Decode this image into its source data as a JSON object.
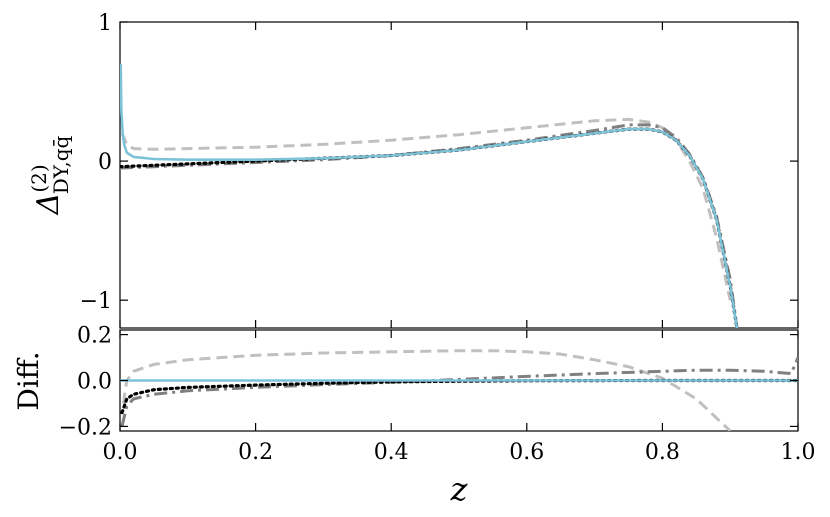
{
  "chart_data": [
    {
      "type": "line",
      "panel": "main",
      "ylabel": "Δ(2) DY,qq̄",
      "xlim": [
        0.0,
        1.0
      ],
      "ylim": [
        -1.2,
        1.0
      ],
      "yticks": [
        {
          "value": 1,
          "label": "1"
        },
        {
          "value": 0,
          "label": "0"
        },
        {
          "value": -1,
          "label": "−1"
        }
      ],
      "grid": false,
      "series": [
        {
          "style": "dashed",
          "color": "#c0c0c0",
          "x": [
            0.003,
            0.01,
            0.02,
            0.05,
            0.1,
            0.2,
            0.3,
            0.4,
            0.5,
            0.6,
            0.7,
            0.75,
            0.78,
            0.8,
            0.82,
            0.84,
            0.86,
            0.88,
            0.9
          ],
          "y": [
            0.2,
            0.12,
            0.09,
            0.085,
            0.09,
            0.1,
            0.12,
            0.15,
            0.19,
            0.24,
            0.29,
            0.3,
            0.28,
            0.24,
            0.15,
            0.0,
            -0.2,
            -0.55,
            -1.0
          ]
        },
        {
          "style": "dashdot",
          "color": "#808080",
          "x": [
            0.0,
            0.05,
            0.1,
            0.2,
            0.3,
            0.4,
            0.5,
            0.6,
            0.7,
            0.75,
            0.78,
            0.8,
            0.82,
            0.84,
            0.86,
            0.88,
            0.9,
            0.91
          ],
          "y": [
            -0.05,
            -0.04,
            -0.03,
            -0.01,
            0.01,
            0.04,
            0.09,
            0.15,
            0.22,
            0.26,
            0.26,
            0.24,
            0.17,
            0.05,
            -0.12,
            -0.4,
            -0.85,
            -1.2
          ]
        },
        {
          "style": "dotted",
          "color": "#000000",
          "x": [
            0.0,
            0.05,
            0.1,
            0.2,
            0.3,
            0.4,
            0.5,
            0.6,
            0.7,
            0.75,
            0.78,
            0.8,
            0.82,
            0.84,
            0.86,
            0.88,
            0.9,
            0.91
          ],
          "y": [
            -0.04,
            -0.03,
            -0.02,
            0.0,
            0.02,
            0.04,
            0.08,
            0.14,
            0.2,
            0.23,
            0.23,
            0.21,
            0.15,
            0.04,
            -0.13,
            -0.42,
            -0.9,
            -1.2
          ]
        },
        {
          "style": "solid",
          "color": "#7cc3d8",
          "x": [
            0.001,
            0.002,
            0.004,
            0.006,
            0.01,
            0.02,
            0.05,
            0.1,
            0.2,
            0.3,
            0.4,
            0.5,
            0.6,
            0.7,
            0.75,
            0.78,
            0.8,
            0.82,
            0.84,
            0.86,
            0.88,
            0.9,
            0.91
          ],
          "y": [
            0.7,
            0.35,
            0.2,
            0.12,
            0.06,
            0.03,
            0.015,
            0.01,
            0.01,
            0.02,
            0.04,
            0.08,
            0.14,
            0.2,
            0.23,
            0.23,
            0.21,
            0.15,
            0.04,
            -0.13,
            -0.42,
            -0.9,
            -1.2
          ]
        }
      ]
    },
    {
      "type": "line",
      "panel": "diff",
      "xlabel": "z",
      "ylabel": "Diff.",
      "xlim": [
        0.0,
        1.0
      ],
      "ylim": [
        -0.22,
        0.22
      ],
      "xticks": [
        {
          "value": 0.0,
          "label": "0.0"
        },
        {
          "value": 0.2,
          "label": "0.2"
        },
        {
          "value": 0.4,
          "label": "0.4"
        },
        {
          "value": 0.6,
          "label": "0.6"
        },
        {
          "value": 0.8,
          "label": "0.8"
        },
        {
          "value": 1.0,
          "label": "1.0"
        }
      ],
      "yticks": [
        {
          "value": 0.2,
          "label": "0.2"
        },
        {
          "value": 0.0,
          "label": "0.0"
        },
        {
          "value": -0.2,
          "label": "−0.2"
        }
      ],
      "grid": false,
      "series": [
        {
          "style": "dashed",
          "color": "#c0c0c0",
          "x": [
            0.005,
            0.01,
            0.02,
            0.05,
            0.1,
            0.2,
            0.3,
            0.4,
            0.5,
            0.55,
            0.6,
            0.65,
            0.7,
            0.75,
            0.8,
            0.85,
            0.9
          ],
          "y": [
            -0.1,
            0.0,
            0.04,
            0.07,
            0.09,
            0.11,
            0.12,
            0.125,
            0.13,
            0.13,
            0.125,
            0.115,
            0.09,
            0.06,
            0.01,
            -0.08,
            -0.22
          ]
        },
        {
          "style": "dashdot",
          "color": "#808080",
          "x": [
            0.003,
            0.01,
            0.02,
            0.05,
            0.1,
            0.2,
            0.3,
            0.4,
            0.5,
            0.6,
            0.7,
            0.8,
            0.85,
            0.9,
            0.95,
            0.99,
            1.0
          ],
          "y": [
            -0.2,
            -0.11,
            -0.08,
            -0.06,
            -0.045,
            -0.03,
            -0.018,
            -0.008,
            0.005,
            0.018,
            0.03,
            0.04,
            0.045,
            0.045,
            0.04,
            0.03,
            0.1
          ]
        },
        {
          "style": "dotted",
          "color": "#000000",
          "x": [
            0.003,
            0.01,
            0.02,
            0.05,
            0.1,
            0.2,
            0.3,
            0.4,
            0.5,
            0.6,
            0.8,
            1.0
          ],
          "y": [
            -0.14,
            -0.08,
            -0.06,
            -0.04,
            -0.03,
            -0.02,
            -0.012,
            -0.006,
            -0.003,
            -0.001,
            0.0,
            0.0
          ]
        },
        {
          "style": "solid",
          "color": "#7cc3d8",
          "x": [
            0.0,
            1.0
          ],
          "y": [
            0.0,
            0.0
          ]
        }
      ]
    }
  ]
}
